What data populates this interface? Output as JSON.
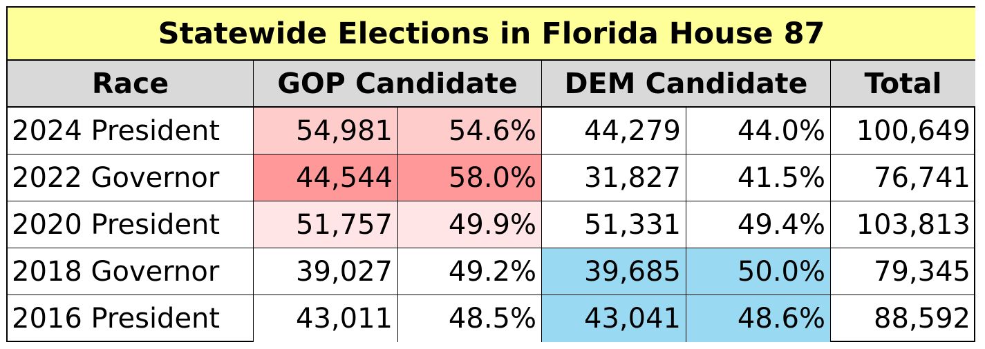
{
  "title": "Statewide Elections in Florida House 87",
  "headers": {
    "race": "Race",
    "gop": "GOP Candidate",
    "dem": "DEM Candidate",
    "total": "Total"
  },
  "colors": {
    "title_bg": "#ffff99",
    "header_bg": "#d9d9d9",
    "gop_win_light": "#ffcccc",
    "gop_win_strong": "#ff9999",
    "gop_win_faint": "#ffe5e5",
    "dem_win": "#99d9f2"
  },
  "rows": [
    {
      "race": "2024 President",
      "gop_votes": "54,981",
      "gop_pct": "54.6%",
      "dem_votes": "44,279",
      "dem_pct": "44.0%",
      "total": "100,649",
      "gop_bg": "#ffcccc",
      "dem_bg": "#ffffff"
    },
    {
      "race": "2022 Governor",
      "gop_votes": "44,544",
      "gop_pct": "58.0%",
      "dem_votes": "31,827",
      "dem_pct": "41.5%",
      "total": "76,741",
      "gop_bg": "#ff9999",
      "dem_bg": "#ffffff"
    },
    {
      "race": "2020 President",
      "gop_votes": "51,757",
      "gop_pct": "49.9%",
      "dem_votes": "51,331",
      "dem_pct": "49.4%",
      "total": "103,813",
      "gop_bg": "#ffe5e5",
      "dem_bg": "#ffffff"
    },
    {
      "race": "2018 Governor",
      "gop_votes": "39,027",
      "gop_pct": "49.2%",
      "dem_votes": "39,685",
      "dem_pct": "50.0%",
      "total": "79,345",
      "gop_bg": "#ffffff",
      "dem_bg": "#99d9f2"
    },
    {
      "race": "2016 President",
      "gop_votes": "43,011",
      "gop_pct": "48.5%",
      "dem_votes": "43,041",
      "dem_pct": "48.6%",
      "total": "88,592",
      "gop_bg": "#ffffff",
      "dem_bg": "#99d9f2"
    }
  ]
}
